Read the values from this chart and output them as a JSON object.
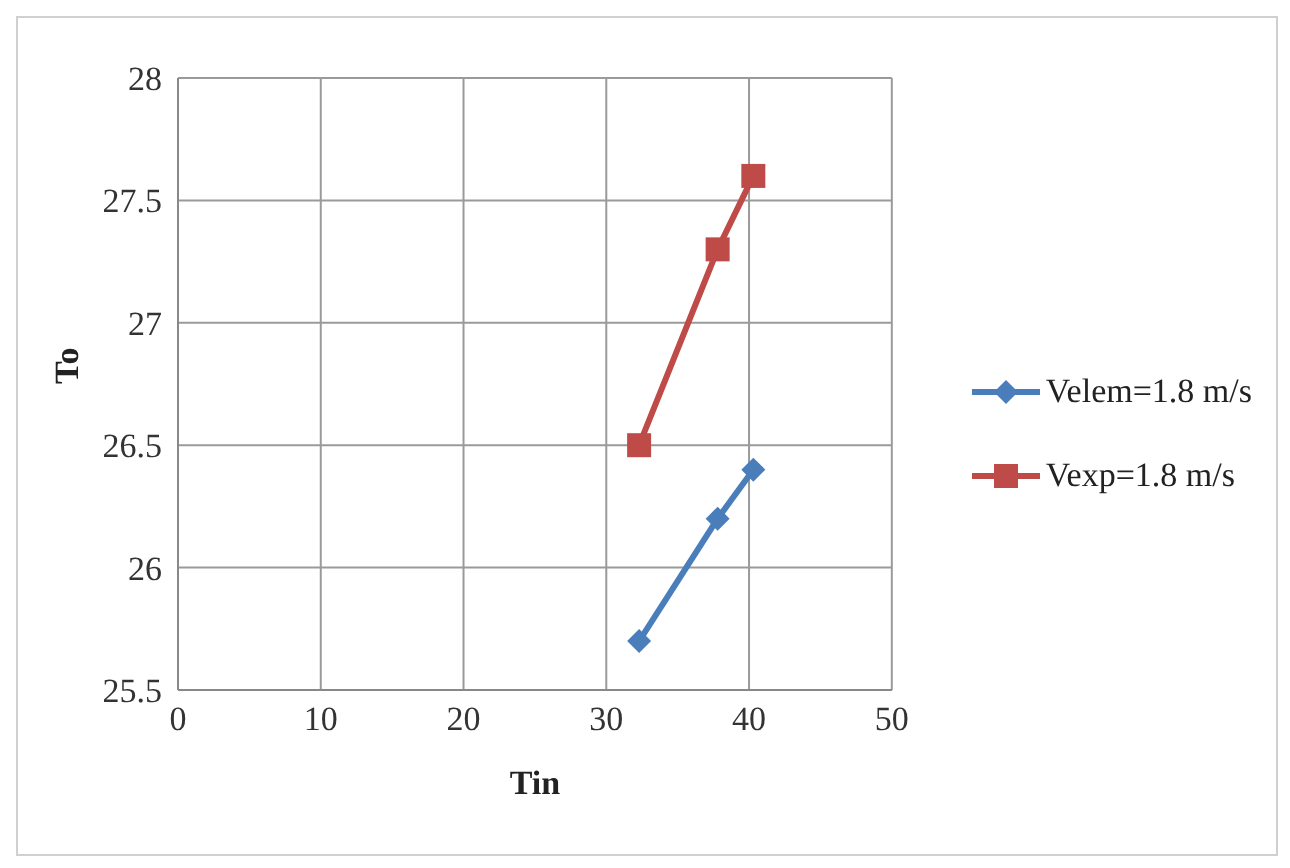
{
  "chart_data": {
    "type": "line",
    "xlabel": "Tin",
    "ylabel": "To",
    "xlim": [
      0,
      50
    ],
    "xticks": [
      0,
      10,
      20,
      30,
      40,
      50
    ],
    "ylim": [
      25.5,
      28
    ],
    "yticks": [
      25.5,
      26,
      26.5,
      27,
      27.5,
      28
    ],
    "grid": true,
    "legend": "right",
    "x": [
      32.3,
      37.8,
      40.3
    ],
    "series": [
      {
        "name": "Velem=1.8 m/s",
        "color": "#4a7ebb",
        "marker": "diamond",
        "values": [
          25.7,
          26.2,
          26.4
        ]
      },
      {
        "name": "Vexp=1.8 m/s",
        "color": "#be4b48",
        "marker": "square",
        "values": [
          26.5,
          27.3,
          27.6
        ]
      }
    ]
  }
}
